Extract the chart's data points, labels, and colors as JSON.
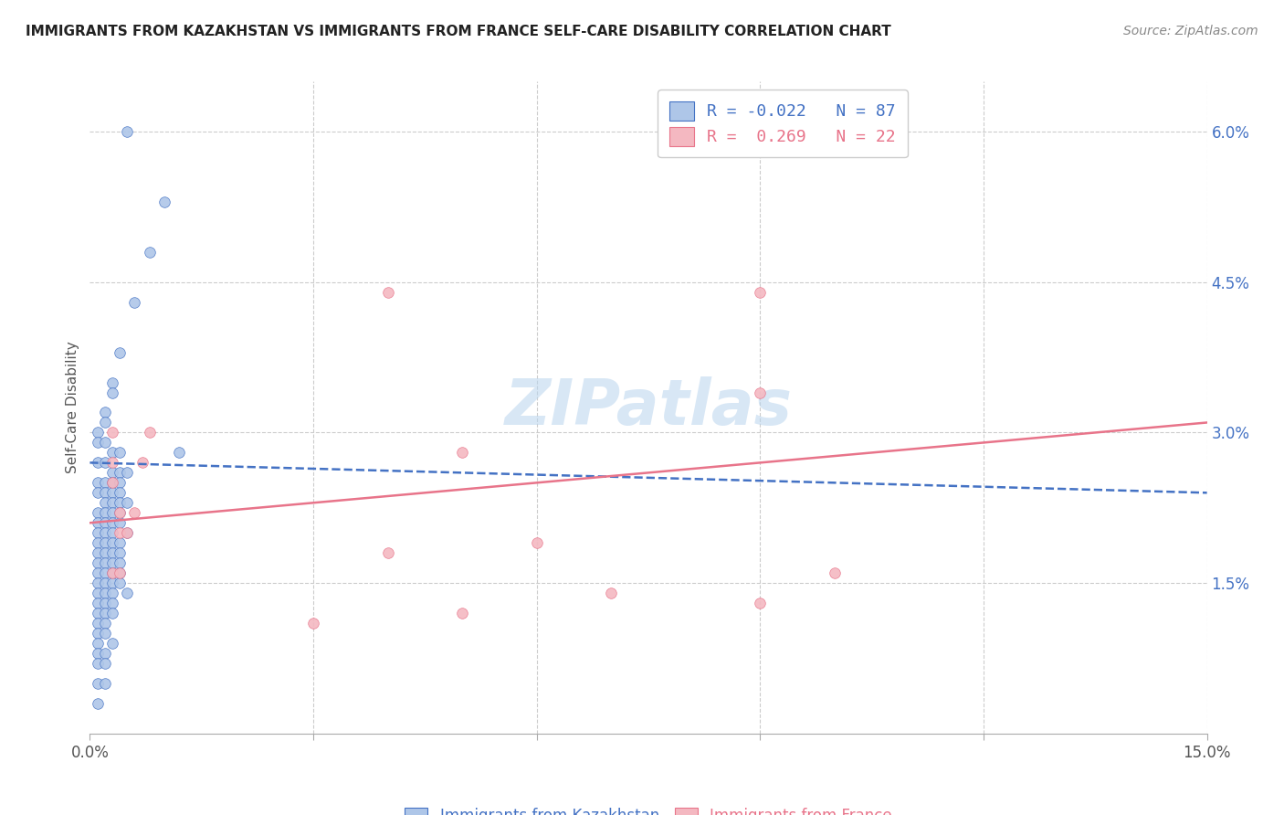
{
  "title": "IMMIGRANTS FROM KAZAKHSTAN VS IMMIGRANTS FROM FRANCE SELF-CARE DISABILITY CORRELATION CHART",
  "source": "Source: ZipAtlas.com",
  "ylabel": "Self-Care Disability",
  "xlim": [
    0,
    0.15
  ],
  "ylim": [
    0,
    0.065
  ],
  "x_tick_positions": [
    0.0,
    0.03,
    0.06,
    0.09,
    0.12,
    0.15
  ],
  "x_tick_labels": [
    "0.0%",
    "",
    "",
    "",
    "",
    "15.0%"
  ],
  "y_ticks_right": [
    0.015,
    0.03,
    0.045,
    0.06
  ],
  "y_tick_labels_right": [
    "1.5%",
    "3.0%",
    "4.5%",
    "6.0%"
  ],
  "kazakhstan_color": "#aec6e8",
  "france_color": "#f4b8c1",
  "kazakhstan_line_color": "#4472C4",
  "france_line_color": "#E8748A",
  "R_kazakhstan": -0.022,
  "N_kazakhstan": 87,
  "R_france": 0.269,
  "N_france": 22,
  "legend_label_kaz": "Immigrants from Kazakhstan",
  "legend_label_fra": "Immigrants from France",
  "watermark": "ZIPatlas",
  "kazakhstan_scatter": [
    [
      0.005,
      0.06
    ],
    [
      0.01,
      0.053
    ],
    [
      0.008,
      0.048
    ],
    [
      0.006,
      0.043
    ],
    [
      0.004,
      0.038
    ],
    [
      0.003,
      0.035
    ],
    [
      0.003,
      0.034
    ],
    [
      0.002,
      0.032
    ],
    [
      0.002,
      0.031
    ],
    [
      0.001,
      0.03
    ],
    [
      0.001,
      0.029
    ],
    [
      0.002,
      0.029
    ],
    [
      0.003,
      0.028
    ],
    [
      0.004,
      0.028
    ],
    [
      0.012,
      0.028
    ],
    [
      0.001,
      0.027
    ],
    [
      0.002,
      0.027
    ],
    [
      0.003,
      0.026
    ],
    [
      0.004,
      0.026
    ],
    [
      0.005,
      0.026
    ],
    [
      0.001,
      0.025
    ],
    [
      0.002,
      0.025
    ],
    [
      0.003,
      0.025
    ],
    [
      0.004,
      0.025
    ],
    [
      0.001,
      0.024
    ],
    [
      0.002,
      0.024
    ],
    [
      0.003,
      0.024
    ],
    [
      0.004,
      0.024
    ],
    [
      0.002,
      0.023
    ],
    [
      0.003,
      0.023
    ],
    [
      0.004,
      0.023
    ],
    [
      0.005,
      0.023
    ],
    [
      0.001,
      0.022
    ],
    [
      0.002,
      0.022
    ],
    [
      0.003,
      0.022
    ],
    [
      0.004,
      0.022
    ],
    [
      0.001,
      0.021
    ],
    [
      0.002,
      0.021
    ],
    [
      0.003,
      0.021
    ],
    [
      0.004,
      0.021
    ],
    [
      0.001,
      0.02
    ],
    [
      0.002,
      0.02
    ],
    [
      0.003,
      0.02
    ],
    [
      0.005,
      0.02
    ],
    [
      0.001,
      0.019
    ],
    [
      0.002,
      0.019
    ],
    [
      0.003,
      0.019
    ],
    [
      0.004,
      0.019
    ],
    [
      0.001,
      0.018
    ],
    [
      0.002,
      0.018
    ],
    [
      0.003,
      0.018
    ],
    [
      0.004,
      0.018
    ],
    [
      0.001,
      0.017
    ],
    [
      0.002,
      0.017
    ],
    [
      0.003,
      0.017
    ],
    [
      0.004,
      0.017
    ],
    [
      0.001,
      0.016
    ],
    [
      0.002,
      0.016
    ],
    [
      0.003,
      0.016
    ],
    [
      0.004,
      0.016
    ],
    [
      0.001,
      0.015
    ],
    [
      0.002,
      0.015
    ],
    [
      0.003,
      0.015
    ],
    [
      0.004,
      0.015
    ],
    [
      0.001,
      0.014
    ],
    [
      0.002,
      0.014
    ],
    [
      0.003,
      0.014
    ],
    [
      0.005,
      0.014
    ],
    [
      0.001,
      0.013
    ],
    [
      0.002,
      0.013
    ],
    [
      0.003,
      0.013
    ],
    [
      0.001,
      0.012
    ],
    [
      0.002,
      0.012
    ],
    [
      0.003,
      0.012
    ],
    [
      0.001,
      0.011
    ],
    [
      0.002,
      0.011
    ],
    [
      0.001,
      0.01
    ],
    [
      0.002,
      0.01
    ],
    [
      0.001,
      0.009
    ],
    [
      0.003,
      0.009
    ],
    [
      0.001,
      0.008
    ],
    [
      0.002,
      0.008
    ],
    [
      0.001,
      0.007
    ],
    [
      0.002,
      0.007
    ],
    [
      0.001,
      0.005
    ],
    [
      0.002,
      0.005
    ],
    [
      0.001,
      0.003
    ]
  ],
  "france_scatter": [
    [
      0.04,
      0.044
    ],
    [
      0.09,
      0.044
    ],
    [
      0.003,
      0.03
    ],
    [
      0.008,
      0.03
    ],
    [
      0.003,
      0.027
    ],
    [
      0.007,
      0.027
    ],
    [
      0.05,
      0.028
    ],
    [
      0.09,
      0.034
    ],
    [
      0.003,
      0.025
    ],
    [
      0.004,
      0.022
    ],
    [
      0.006,
      0.022
    ],
    [
      0.004,
      0.02
    ],
    [
      0.005,
      0.02
    ],
    [
      0.06,
      0.019
    ],
    [
      0.1,
      0.016
    ],
    [
      0.04,
      0.018
    ],
    [
      0.003,
      0.016
    ],
    [
      0.004,
      0.016
    ],
    [
      0.07,
      0.014
    ],
    [
      0.09,
      0.013
    ],
    [
      0.05,
      0.012
    ],
    [
      0.03,
      0.011
    ]
  ],
  "kaz_trend": [
    0.0,
    0.15,
    0.027,
    0.024
  ],
  "fra_trend": [
    0.0,
    0.15,
    0.021,
    0.031
  ],
  "title_fontsize": 11,
  "source_fontsize": 10,
  "tick_fontsize": 12,
  "ylabel_fontsize": 11
}
